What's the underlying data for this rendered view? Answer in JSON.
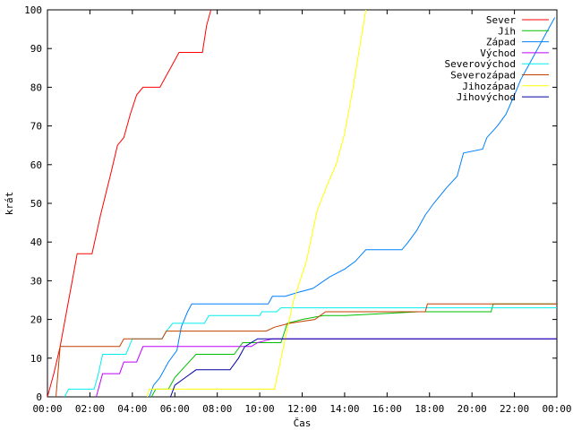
{
  "chart_data": {
    "type": "line",
    "xlabel": "Čas",
    "ylabel": "krát",
    "xlim": [
      0,
      24
    ],
    "ylim": [
      0,
      100
    ],
    "x_unit": "hours",
    "x_ticks": [
      {
        "value": 0,
        "label": "00:00"
      },
      {
        "value": 2,
        "label": "02:00"
      },
      {
        "value": 4,
        "label": "04:00"
      },
      {
        "value": 6,
        "label": "06:00"
      },
      {
        "value": 8,
        "label": "08:00"
      },
      {
        "value": 10,
        "label": "10:00"
      },
      {
        "value": 12,
        "label": "12:00"
      },
      {
        "value": 14,
        "label": "14:00"
      },
      {
        "value": 16,
        "label": "16:00"
      },
      {
        "value": 18,
        "label": "18:00"
      },
      {
        "value": 20,
        "label": "20:00"
      },
      {
        "value": 22,
        "label": "22:00"
      },
      {
        "value": 24,
        "label": "00:00"
      }
    ],
    "y_ticks": [
      0,
      10,
      20,
      30,
      40,
      50,
      60,
      70,
      80,
      90,
      100
    ],
    "grid": false,
    "legend_position": "top-right",
    "series": [
      {
        "name": "Sever",
        "color": "#ff0000",
        "points": [
          [
            0,
            0
          ],
          [
            0.3,
            6
          ],
          [
            0.6,
            13
          ],
          [
            0.9,
            22
          ],
          [
            1.2,
            31
          ],
          [
            1.4,
            37
          ],
          [
            2.1,
            37
          ],
          [
            2.5,
            47
          ],
          [
            3.0,
            58
          ],
          [
            3.3,
            65
          ],
          [
            3.6,
            67
          ],
          [
            3.9,
            73
          ],
          [
            4.2,
            78
          ],
          [
            4.5,
            80
          ],
          [
            5.3,
            80
          ],
          [
            5.6,
            83
          ],
          [
            5.9,
            86
          ],
          [
            6.2,
            89
          ],
          [
            7.3,
            89
          ],
          [
            7.5,
            96
          ],
          [
            7.7,
            100
          ]
        ]
      },
      {
        "name": "Jih",
        "color": "#00c000",
        "points": [
          [
            4.9,
            0
          ],
          [
            5.1,
            2
          ],
          [
            5.7,
            2
          ],
          [
            6.0,
            5
          ],
          [
            6.5,
            8
          ],
          [
            7.0,
            11
          ],
          [
            8.8,
            11
          ],
          [
            9.2,
            14
          ],
          [
            11.0,
            14
          ],
          [
            11.3,
            19
          ],
          [
            12.0,
            20
          ],
          [
            13.0,
            21
          ],
          [
            14.0,
            21
          ],
          [
            17.5,
            22
          ],
          [
            20.9,
            22
          ],
          [
            21.0,
            24
          ],
          [
            24,
            24
          ]
        ]
      },
      {
        "name": "Západ",
        "color": "#0080ff",
        "points": [
          [
            4.8,
            0
          ],
          [
            5.0,
            3
          ],
          [
            5.3,
            5
          ],
          [
            5.7,
            9
          ],
          [
            6.1,
            12
          ],
          [
            6.3,
            18
          ],
          [
            6.6,
            22
          ],
          [
            6.8,
            24
          ],
          [
            10.4,
            24
          ],
          [
            10.6,
            26
          ],
          [
            11.2,
            26
          ],
          [
            11.8,
            27
          ],
          [
            12.5,
            28
          ],
          [
            13.3,
            31
          ],
          [
            14.0,
            33
          ],
          [
            14.5,
            35
          ],
          [
            15.0,
            38
          ],
          [
            16.7,
            38
          ],
          [
            17.0,
            40
          ],
          [
            17.4,
            43
          ],
          [
            17.8,
            47
          ],
          [
            18.2,
            50
          ],
          [
            18.8,
            54
          ],
          [
            19.3,
            57
          ],
          [
            19.6,
            63
          ],
          [
            20.5,
            64
          ],
          [
            20.7,
            67
          ],
          [
            21.2,
            70
          ],
          [
            21.6,
            73
          ],
          [
            22.0,
            78
          ],
          [
            22.3,
            82
          ],
          [
            22.7,
            86
          ],
          [
            23.0,
            89
          ],
          [
            23.5,
            94
          ],
          [
            23.9,
            98
          ]
        ]
      },
      {
        "name": "Východ",
        "color": "#c000ff",
        "points": [
          [
            2.3,
            0
          ],
          [
            2.6,
            6
          ],
          [
            3.4,
            6
          ],
          [
            3.6,
            9
          ],
          [
            4.2,
            9
          ],
          [
            4.5,
            13
          ],
          [
            9.6,
            13
          ],
          [
            9.9,
            14
          ],
          [
            10.6,
            15
          ],
          [
            24,
            15
          ]
        ]
      },
      {
        "name": "Severovýchod",
        "color": "#00eeee",
        "points": [
          [
            0.8,
            0
          ],
          [
            1.0,
            2
          ],
          [
            2.2,
            2
          ],
          [
            2.4,
            6
          ],
          [
            2.6,
            11
          ],
          [
            3.7,
            11
          ],
          [
            4.0,
            15
          ],
          [
            5.4,
            15
          ],
          [
            5.6,
            17
          ],
          [
            5.9,
            19
          ],
          [
            7.4,
            19
          ],
          [
            7.6,
            21
          ],
          [
            10.0,
            21
          ],
          [
            10.1,
            22
          ],
          [
            10.8,
            22
          ],
          [
            11.0,
            23
          ],
          [
            24,
            23
          ]
        ]
      },
      {
        "name": "Severozápad",
        "color": "#c04000",
        "points": [
          [
            0.4,
            0
          ],
          [
            0.6,
            13
          ],
          [
            3.4,
            13
          ],
          [
            3.6,
            15
          ],
          [
            5.4,
            15
          ],
          [
            5.6,
            17
          ],
          [
            9.8,
            17
          ],
          [
            10.3,
            17
          ],
          [
            10.7,
            18
          ],
          [
            11.4,
            19
          ],
          [
            12.6,
            20
          ],
          [
            13.1,
            22
          ],
          [
            17.8,
            22
          ],
          [
            17.9,
            24
          ],
          [
            24,
            24
          ]
        ]
      },
      {
        "name": "Jihozápad",
        "color": "#ffff00",
        "points": [
          [
            4.7,
            0
          ],
          [
            4.8,
            2
          ],
          [
            10.7,
            2
          ],
          [
            11.2,
            15
          ],
          [
            11.6,
            25
          ],
          [
            12.2,
            35
          ],
          [
            12.7,
            48
          ],
          [
            13.2,
            55
          ],
          [
            13.6,
            60
          ],
          [
            14.0,
            68
          ],
          [
            14.4,
            80
          ],
          [
            14.7,
            90
          ],
          [
            15.0,
            100
          ]
        ]
      },
      {
        "name": "Jihovýchod",
        "color": "#0000a0",
        "points": [
          [
            5.8,
            0
          ],
          [
            6.0,
            3
          ],
          [
            6.5,
            5
          ],
          [
            7.0,
            7
          ],
          [
            8.6,
            7
          ],
          [
            9.0,
            10
          ],
          [
            9.3,
            13
          ],
          [
            9.9,
            15
          ],
          [
            24,
            15
          ]
        ]
      }
    ]
  }
}
